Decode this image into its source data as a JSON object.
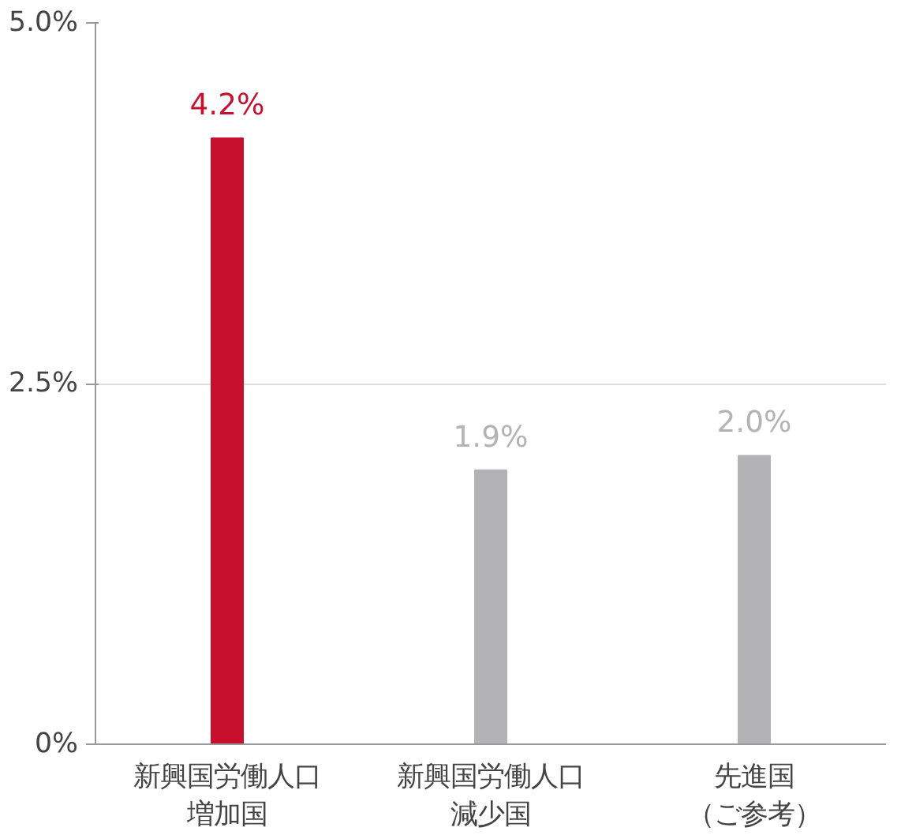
{
  "chart_data": {
    "type": "bar",
    "categories": [
      "新興国労働人口増加国",
      "新興国労働人口減少国",
      "先進国（ご参考）"
    ],
    "values": [
      4.2,
      1.9,
      2.0
    ],
    "colors": [
      "#c8102e",
      "#b3b3b5",
      "#b3b3b5"
    ],
    "ylim": [
      0,
      5
    ],
    "yticks": [
      {
        "value": 0,
        "label": "0%"
      },
      {
        "value": 2.5,
        "label": "2.5%"
      },
      {
        "value": 5,
        "label": "5.0%"
      }
    ],
    "value_labels": [
      "4.2%",
      "1.9%",
      "2.0%"
    ],
    "grid": "y"
  }
}
